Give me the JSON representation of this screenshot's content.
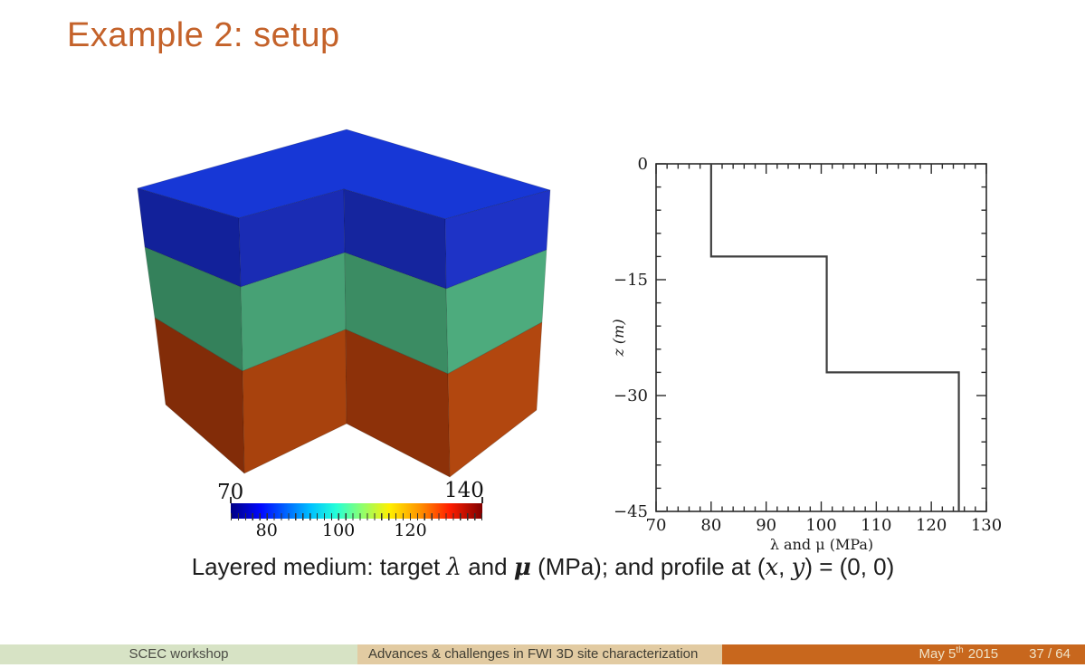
{
  "slide": {
    "title": "Example 2: setup"
  },
  "caption": {
    "parts": [
      {
        "t": "Layered medium: target ",
        "s": "plain"
      },
      {
        "t": "λ",
        "s": "math"
      },
      {
        "t": " and ",
        "s": "plain"
      },
      {
        "t": "μ",
        "s": "mathbold"
      },
      {
        "t": " (MPa); and profile at (",
        "s": "plain"
      },
      {
        "t": "x",
        "s": "math"
      },
      {
        "t": ", ",
        "s": "plain"
      },
      {
        "t": "y",
        "s": "math"
      },
      {
        "t": ") = (0, 0)",
        "s": "plain"
      }
    ]
  },
  "footer": {
    "left": "SCEC workshop",
    "middle": "Advances & challenges in FWI 3D site characterization",
    "date_prefix": "May 5",
    "date_super": "th",
    "date_year": "2015",
    "page": "37 / 64",
    "colors": {
      "left_bg": "#d7e3c5",
      "middle_bg": "#e2cba2",
      "right_bg": "#c8671d"
    }
  },
  "cube": {
    "colors": {
      "top": "#1737d6",
      "outer_left": {
        "blue": "#12219a",
        "green": "#34815b",
        "brown": "#822c08"
      },
      "inner_left": {
        "blue": "#1a2cb4",
        "green": "#47a175",
        "brown": "#a8420d"
      },
      "inner_right": {
        "blue": "#15259e",
        "green": "#3b8c63",
        "brown": "#8d3109"
      },
      "outer_right": {
        "blue": "#1e33c6",
        "green": "#4dab7d",
        "brown": "#b2470f"
      }
    }
  },
  "chart_data": [
    {
      "type": "3d-layered-block",
      "description": "Layered medium block with quarter cutout; colors map λ and μ (MPa) through rainbow colorbar",
      "layers": [
        {
          "label": "top layer (blue)",
          "depth_top_m": 0,
          "depth_bottom_m": -12,
          "lambda_mu_MPa": 80
        },
        {
          "label": "middle layer (green)",
          "depth_top_m": -12,
          "depth_bottom_m": -27,
          "lambda_mu_MPa": 101
        },
        {
          "label": "bottom layer (brown)",
          "depth_top_m": -27,
          "depth_bottom_m": -45,
          "lambda_mu_MPa": 125
        }
      ],
      "colorbar": {
        "min": 70,
        "max": 140,
        "bottom_tick_labels": [
          80,
          100,
          120
        ],
        "minor_tick_step": 2,
        "gradient": "jet-like rainbow dark blue to dark red"
      }
    },
    {
      "type": "line",
      "title": "",
      "xlabel": "λ and μ (MPa)",
      "ylabel": "z (m)",
      "xlim": [
        70,
        130
      ],
      "ylim": [
        -45,
        0
      ],
      "x_major_ticks": [
        70,
        80,
        90,
        100,
        110,
        120,
        130
      ],
      "x_minor_step": 2,
      "y_major_ticks": [
        0,
        -15,
        -30,
        -45
      ],
      "y_minor_step": 3,
      "grid": false,
      "legend": "none",
      "series": [
        {
          "name": "λ and μ profile at (x, y) = (0, 0)",
          "style": "step",
          "color": "#3f3f3f",
          "points": [
            [
              80,
              0
            ],
            [
              80,
              -12
            ],
            [
              101,
              -12
            ],
            [
              101,
              -27
            ],
            [
              125,
              -27
            ],
            [
              125,
              -45
            ]
          ]
        }
      ]
    }
  ]
}
